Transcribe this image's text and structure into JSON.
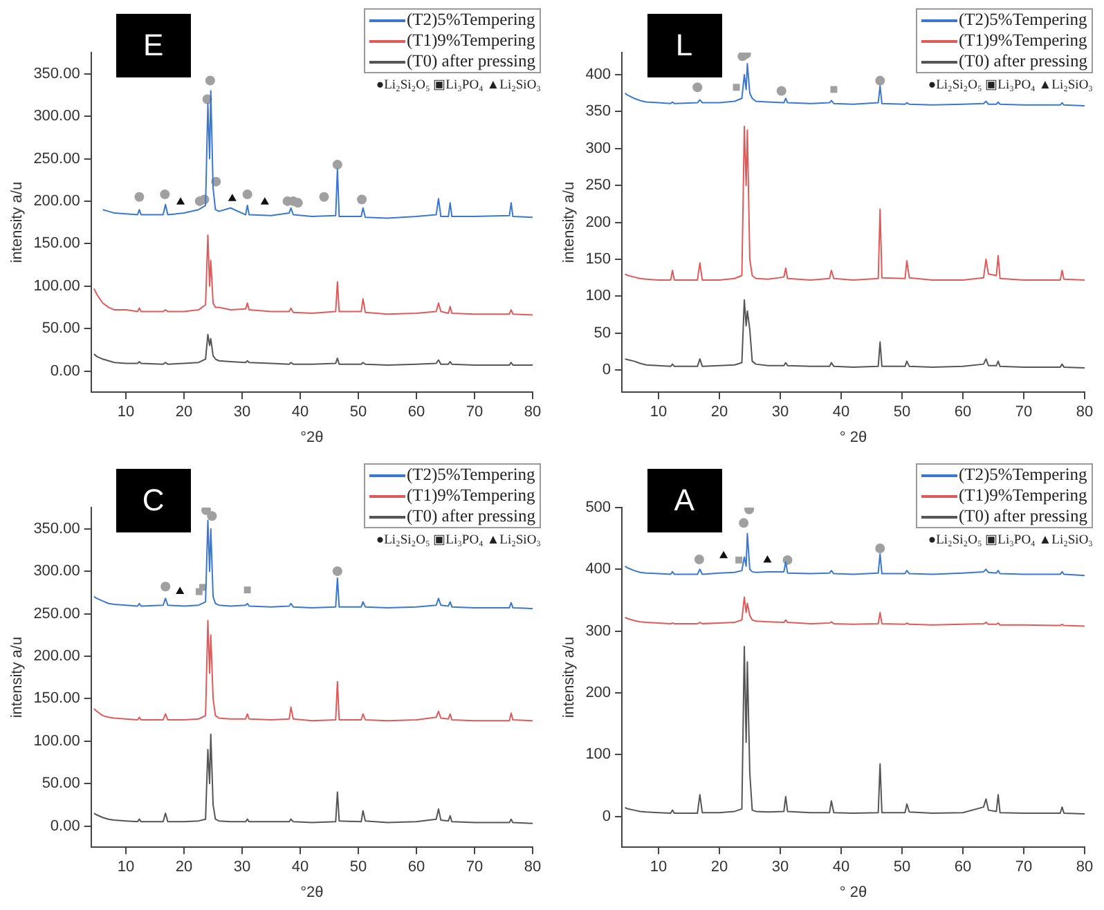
{
  "chart_data": [
    {
      "type": "line",
      "title": "E",
      "xlabel": "°2θ",
      "ylabel": "intensity a/u",
      "legend": "top right",
      "grid": false,
      "xlim": [
        4,
        80
      ],
      "ylim": [
        -25,
        375
      ],
      "xticks": [
        10,
        20,
        30,
        40,
        50,
        60,
        70,
        80
      ],
      "yticks": [
        {
          "value": 0,
          "label": "0.00"
        },
        {
          "value": 50,
          "label": "50.00"
        },
        {
          "value": 100,
          "label": "100.00"
        },
        {
          "value": 150,
          "label": "150.00"
        },
        {
          "value": 200,
          "label": "200.00"
        },
        {
          "value": 250,
          "label": "250.00"
        },
        {
          "value": 300,
          "label": "300.00"
        },
        {
          "value": 350,
          "label": "350.00"
        }
      ],
      "annotations": [
        "●Li₂Si₂O₅ ▣Li₃PO₄ ▲Li₂SiO₃"
      ],
      "x": [
        4.5,
        5,
        6,
        7,
        8,
        10,
        12,
        12.3,
        12.6,
        16.4,
        16.8,
        17.2,
        20,
        22.5,
        23.7,
        24.1,
        24.4,
        24.6,
        25.0,
        25.4,
        26,
        28,
        30.6,
        30.9,
        31.2,
        35,
        38.1,
        38.4,
        38.8,
        42,
        46.1,
        46.4,
        46.7,
        50.5,
        50.8,
        51.2,
        55,
        60,
        63.4,
        63.8,
        64.2,
        65.5,
        65.8,
        66.1,
        70,
        76.0,
        76.3,
        76.6,
        80
      ],
      "series": [
        {
          "name": "(T2)5%Tempering",
          "color": "#3a78d0",
          "values": [
            null,
            null,
            190,
            188,
            186,
            185,
            184,
            190,
            184,
            184,
            196,
            184,
            186,
            190,
            195,
            315,
            250,
            330,
            215,
            190,
            188,
            192,
            184,
            195,
            184,
            183,
            186,
            192,
            184,
            182,
            183,
            238,
            182,
            182,
            192,
            181,
            180,
            182,
            184,
            203,
            182,
            182,
            198,
            182,
            182,
            183,
            198,
            182,
            181
          ]
        },
        {
          "name": "(T1)9%Tempering",
          "color": "#e05a5a",
          "values": [
            97,
            90,
            80,
            75,
            72,
            72,
            70,
            74,
            70,
            70,
            72,
            70,
            70,
            72,
            78,
            160,
            100,
            130,
            80,
            75,
            75,
            72,
            73,
            80,
            72,
            70,
            70,
            74,
            69,
            68,
            70,
            105,
            70,
            70,
            85,
            69,
            67,
            68,
            70,
            80,
            70,
            68,
            76,
            68,
            67,
            67,
            72,
            67,
            66
          ]
        },
        {
          "name": "(T0) after pressing",
          "color": "#555555",
          "values": [
            20,
            17,
            14,
            12,
            10,
            9,
            9,
            11,
            9,
            8,
            10,
            8,
            9,
            10,
            14,
            43,
            30,
            38,
            18,
            14,
            12,
            11,
            10,
            12,
            10,
            9,
            8,
            10,
            8,
            8,
            9,
            15,
            8,
            8,
            10,
            8,
            7,
            8,
            9,
            13,
            8,
            8,
            11,
            8,
            7,
            7,
            10,
            7,
            7
          ]
        },
        {
          "type": "scatter",
          "marker": "circle",
          "color": "#a0a0a0",
          "x": [
            12.3,
            16.7,
            22.7,
            23.5,
            24.0,
            24.5,
            25.5,
            30.9,
            37.8,
            38.8,
            39.6,
            44.1,
            46.4,
            50.6
          ],
          "values": [
            205,
            208,
            200,
            202,
            320,
            342,
            223,
            208,
            200,
            200,
            198,
            205,
            243,
            202
          ]
        },
        {
          "type": "scatter",
          "marker": "triangle",
          "color": "#111111",
          "x": [
            19.4,
            28.3,
            33.9
          ],
          "values": [
            199,
            203,
            199
          ]
        }
      ]
    },
    {
      "type": "line",
      "title": "L",
      "xlabel": "° 2θ",
      "ylabel": "intensity a/u",
      "legend": "top right",
      "grid": false,
      "xlim": [
        4,
        80
      ],
      "ylim": [
        -30,
        430
      ],
      "xticks": [
        10,
        20,
        30,
        40,
        50,
        60,
        70,
        80
      ],
      "yticks": [
        0,
        50,
        100,
        150,
        200,
        250,
        300,
        350,
        400
      ],
      "annotations": [
        "●Li₂Si₂O₅ ▣Li₃PO₄ ▲Li₂SiO₃"
      ],
      "x": [
        4.5,
        5,
        6,
        7,
        8,
        10,
        12,
        12.3,
        12.6,
        16.4,
        16.8,
        17.2,
        20,
        22.5,
        23.7,
        24.1,
        24.4,
        24.6,
        25.0,
        25.4,
        26,
        28,
        30.6,
        30.9,
        31.2,
        35,
        38.1,
        38.4,
        38.8,
        42,
        46.1,
        46.4,
        46.7,
        50.5,
        50.8,
        51.2,
        55,
        60,
        63.4,
        63.8,
        64.2,
        65.5,
        65.8,
        66.1,
        70,
        76.0,
        76.3,
        76.6,
        80
      ],
      "series": [
        {
          "name": "(T2)5%Tempering",
          "color": "#3a78d0",
          "values": [
            375,
            372,
            368,
            365,
            363,
            362,
            361,
            363,
            361,
            362,
            366,
            362,
            362,
            364,
            368,
            400,
            380,
            415,
            375,
            368,
            364,
            363,
            362,
            368,
            362,
            361,
            362,
            365,
            361,
            360,
            362,
            385,
            361,
            360,
            362,
            360,
            359,
            360,
            361,
            364,
            360,
            360,
            363,
            360,
            359,
            359,
            362,
            359,
            358
          ]
        },
        {
          "name": "(T1)9%Tempering",
          "color": "#e05a5a",
          "values": [
            130,
            128,
            126,
            124,
            123,
            122,
            122,
            135,
            122,
            122,
            145,
            122,
            122,
            124,
            128,
            330,
            250,
            325,
            150,
            128,
            124,
            123,
            126,
            138,
            124,
            122,
            124,
            135,
            124,
            122,
            124,
            218,
            125,
            124,
            148,
            125,
            122,
            122,
            125,
            150,
            130,
            128,
            155,
            124,
            122,
            122,
            135,
            123,
            122
          ]
        },
        {
          "name": "(T0) after pressing",
          "color": "#555555",
          "values": [
            15,
            14,
            12,
            9,
            7,
            6,
            5,
            8,
            5,
            5,
            15,
            5,
            6,
            7,
            10,
            95,
            60,
            80,
            55,
            12,
            8,
            6,
            6,
            10,
            6,
            5,
            5,
            10,
            5,
            4,
            5,
            38,
            5,
            5,
            12,
            5,
            4,
            5,
            8,
            15,
            6,
            6,
            12,
            5,
            4,
            4,
            8,
            4,
            3
          ]
        },
        {
          "type": "scatter",
          "marker": "circle",
          "color": "#a0a0a0",
          "x": [
            16.4,
            23.8,
            24.4,
            30.2,
            46.4
          ],
          "values": [
            383,
            425,
            428,
            378,
            392
          ]
        },
        {
          "type": "scatter",
          "marker": "square",
          "color": "#a0a0a0",
          "x": [
            22.8,
            38.8
          ],
          "values": [
            383,
            380
          ]
        }
      ]
    },
    {
      "type": "line",
      "title": "C",
      "xlabel": "°2θ",
      "ylabel": "intensity a/u",
      "legend": "top right",
      "grid": false,
      "xlim": [
        4,
        80
      ],
      "ylim": [
        -25,
        375
      ],
      "xticks": [
        10,
        20,
        30,
        40,
        50,
        60,
        70,
        80
      ],
      "yticks": [
        {
          "value": 0,
          "label": "0.00"
        },
        {
          "value": 50,
          "label": "50.00"
        },
        {
          "value": 100,
          "label": "100.00"
        },
        {
          "value": 150,
          "label": "150.00"
        },
        {
          "value": 200,
          "label": "200.00"
        },
        {
          "value": 250,
          "label": "250.00"
        },
        {
          "value": 300,
          "label": "300.00"
        },
        {
          "value": 350,
          "label": "350.00"
        }
      ],
      "annotations": [
        "●Li₂Si₂O₅ ▣Li₃PO₄ ▲Li₂SiO₃"
      ],
      "x": [
        4.5,
        5,
        6,
        7,
        8,
        10,
        12,
        12.3,
        12.6,
        16.4,
        16.8,
        17.2,
        20,
        22.5,
        23.7,
        24.1,
        24.4,
        24.6,
        25.0,
        25.4,
        26,
        28,
        30.6,
        30.9,
        31.2,
        35,
        38.1,
        38.4,
        38.8,
        42,
        46.1,
        46.4,
        46.7,
        50.5,
        50.8,
        51.2,
        55,
        60,
        63.4,
        63.8,
        64.2,
        65.5,
        65.8,
        66.1,
        70,
        76.0,
        76.3,
        76.6,
        80
      ],
      "series": [
        {
          "name": "(T2)5%Tempering",
          "color": "#3a78d0",
          "values": [
            270,
            268,
            265,
            262,
            261,
            260,
            259,
            262,
            259,
            260,
            268,
            260,
            259,
            260,
            264,
            360,
            300,
            350,
            270,
            262,
            260,
            259,
            260,
            262,
            259,
            258,
            259,
            262,
            258,
            257,
            258,
            292,
            258,
            258,
            264,
            258,
            257,
            258,
            260,
            268,
            260,
            259,
            264,
            258,
            257,
            257,
            263,
            257,
            256
          ]
        },
        {
          "name": "(T1)9%Tempering",
          "color": "#e05a5a",
          "values": [
            138,
            135,
            130,
            128,
            127,
            126,
            125,
            128,
            125,
            125,
            132,
            125,
            125,
            126,
            130,
            242,
            180,
            225,
            150,
            130,
            127,
            126,
            126,
            132,
            126,
            125,
            126,
            140,
            126,
            124,
            125,
            170,
            125,
            125,
            132,
            125,
            124,
            125,
            128,
            135,
            127,
            126,
            132,
            125,
            124,
            124,
            133,
            125,
            124
          ]
        },
        {
          "name": "(T0) after pressing",
          "color": "#555555",
          "values": [
            15,
            13,
            10,
            8,
            7,
            6,
            5,
            8,
            5,
            5,
            15,
            5,
            5,
            6,
            8,
            90,
            50,
            108,
            25,
            8,
            6,
            5,
            5,
            8,
            5,
            5,
            5,
            8,
            5,
            4,
            5,
            40,
            6,
            5,
            18,
            6,
            4,
            5,
            8,
            20,
            7,
            6,
            12,
            5,
            4,
            4,
            8,
            4,
            3
          ]
        },
        {
          "type": "scatter",
          "marker": "circle",
          "color": "#a0a0a0",
          "x": [
            16.8,
            23.8,
            24.8,
            46.4
          ],
          "values": [
            282,
            372,
            365,
            300
          ]
        },
        {
          "type": "scatter",
          "marker": "square",
          "color": "#a0a0a0",
          "x": [
            22.6,
            23.2,
            30.9
          ],
          "values": [
            276,
            281,
            278
          ]
        },
        {
          "type": "scatter",
          "marker": "triangle",
          "color": "#111111",
          "x": [
            19.3
          ],
          "values": [
            276
          ]
        }
      ]
    },
    {
      "type": "line",
      "title": "A",
      "xlabel": "° 2θ",
      "ylabel": "intensity a/u",
      "legend": "top right",
      "grid": false,
      "xlim": [
        4,
        80
      ],
      "ylim": [
        -50,
        500
      ],
      "xticks": [
        10,
        20,
        30,
        40,
        50,
        60,
        70,
        80
      ],
      "yticks": [
        0,
        100,
        200,
        300,
        400,
        500
      ],
      "annotations": [
        "●Li₂Si₂O₅ ▣Li₃PO₄ ▲Li₂SiO₃"
      ],
      "x": [
        4.5,
        5,
        6,
        7,
        8,
        10,
        12,
        12.3,
        12.6,
        16.4,
        16.8,
        17.2,
        20,
        22.5,
        23.7,
        24.1,
        24.4,
        24.6,
        25.0,
        25.4,
        26,
        28,
        30.6,
        30.9,
        31.2,
        35,
        38.1,
        38.4,
        38.8,
        42,
        46.1,
        46.4,
        46.7,
        50.5,
        50.8,
        51.2,
        55,
        60,
        63.4,
        63.8,
        64.2,
        65.5,
        65.8,
        66.1,
        70,
        76.0,
        76.3,
        76.6,
        80
      ],
      "series": [
        {
          "name": "(T2)5%Tempering",
          "color": "#3a78d0",
          "values": [
            405,
            402,
            398,
            395,
            394,
            393,
            392,
            396,
            392,
            392,
            400,
            392,
            394,
            395,
            398,
            420,
            405,
            458,
            400,
            396,
            395,
            396,
            396,
            412,
            394,
            393,
            394,
            398,
            393,
            392,
            394,
            425,
            393,
            393,
            398,
            393,
            392,
            394,
            396,
            400,
            395,
            394,
            398,
            393,
            392,
            392,
            396,
            392,
            390
          ]
        },
        {
          "name": "(T1)9%Tempering",
          "color": "#e05a5a",
          "values": [
            322,
            320,
            317,
            315,
            314,
            313,
            312,
            313,
            312,
            312,
            314,
            312,
            313,
            314,
            318,
            355,
            330,
            345,
            325,
            318,
            316,
            315,
            314,
            318,
            314,
            312,
            313,
            315,
            312,
            311,
            312,
            330,
            312,
            311,
            313,
            311,
            310,
            311,
            312,
            314,
            311,
            311,
            313,
            310,
            310,
            309,
            311,
            309,
            308
          ]
        },
        {
          "name": "(T0) after pressing",
          "color": "#555555",
          "values": [
            14,
            12,
            10,
            8,
            7,
            6,
            5,
            10,
            5,
            5,
            35,
            6,
            6,
            8,
            12,
            275,
            120,
            250,
            70,
            10,
            8,
            7,
            8,
            32,
            8,
            6,
            6,
            25,
            6,
            5,
            6,
            85,
            6,
            6,
            20,
            7,
            5,
            6,
            15,
            28,
            10,
            8,
            35,
            6,
            5,
            5,
            15,
            5,
            4
          ]
        },
        {
          "type": "scatter",
          "marker": "circle",
          "color": "#a0a0a0",
          "x": [
            16.7,
            24.0,
            24.9,
            31.2,
            46.4
          ],
          "values": [
            416,
            475,
            497,
            415,
            434
          ]
        },
        {
          "type": "scatter",
          "marker": "square",
          "color": "#a0a0a0",
          "x": [
            23.2
          ],
          "values": [
            415
          ]
        },
        {
          "type": "scatter",
          "marker": "triangle",
          "color": "#111111",
          "x": [
            20.7,
            27.9
          ],
          "values": [
            422,
            415
          ]
        }
      ]
    }
  ]
}
